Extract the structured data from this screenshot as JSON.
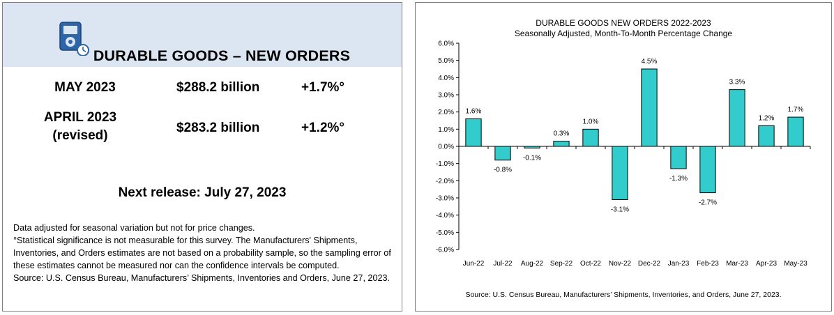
{
  "left": {
    "title": "DURABLE GOODS – NEW ORDERS",
    "rows": [
      {
        "period": "MAY 2023",
        "value": "$288.2 billion",
        "change": "+1.7%°"
      },
      {
        "period_line1": "APRIL 2023",
        "period_line2": "(revised)",
        "value": "$283.2 billion",
        "change": "+1.2%°"
      }
    ],
    "next_release": "Next release: July 27, 2023",
    "notes": [
      "Data adjusted for seasonal variation but not for price changes.",
      "°Statistical significance is not measurable for this survey.  The Manufacturers' Shipments, Inventories, and Orders estimates are not based on a probability sample, so the sampling error of these estimates cannot be measured nor can the confidence intervals be computed.",
      "Source: U.S. Census Bureau, Manufacturers’ Shipments, Inventories and Orders, June 27, 2023."
    ],
    "icon": "calculator-clock-icon"
  },
  "chart_data": {
    "type": "bar",
    "title": "DURABLE GOODS NEW ORDERS 2022-2023",
    "subtitle": "Seasonally Adjusted,  Month-To-Month Percentage Change",
    "categories": [
      "Jun-22",
      "Jul-22",
      "Aug-22",
      "Sep-22",
      "Oct-22",
      "Nov-22",
      "Dec-22",
      "Jan-23",
      "Feb-23",
      "Mar-23",
      "Apr-23",
      "May-23"
    ],
    "values": [
      1.6,
      -0.8,
      -0.1,
      0.3,
      1.0,
      -3.1,
      4.5,
      -1.3,
      -2.7,
      3.3,
      1.2,
      1.7
    ],
    "data_labels": [
      "1.6%",
      "-0.8%",
      "-0.1%",
      "0.3%",
      "1.0%",
      "-3.1%",
      "4.5%",
      "-1.3%",
      "-2.7%",
      "3.3%",
      "1.2%",
      "1.7%"
    ],
    "ylim": [
      -6.0,
      6.0
    ],
    "yticks": [
      6.0,
      5.0,
      4.0,
      3.0,
      2.0,
      1.0,
      0.0,
      -1.0,
      -2.0,
      -3.0,
      -4.0,
      -5.0,
      -6.0
    ],
    "ytick_labels": [
      "6.0%",
      "5.0%",
      "4.0%",
      "3.0%",
      "2.0%",
      "1.0%",
      "0.0%",
      "-1.0%",
      "-2.0%",
      "-3.0%",
      "-4.0%",
      "-5.0%",
      "-6.0%"
    ],
    "xlabel": "",
    "ylabel": "",
    "grid": false,
    "bar_color": "#33cccc",
    "bar_edge_color": "#000000",
    "source": "Source: U.S. Census Bureau, Manufacturers’ Shipments, Inventories, and Orders, June 27, 2023."
  }
}
